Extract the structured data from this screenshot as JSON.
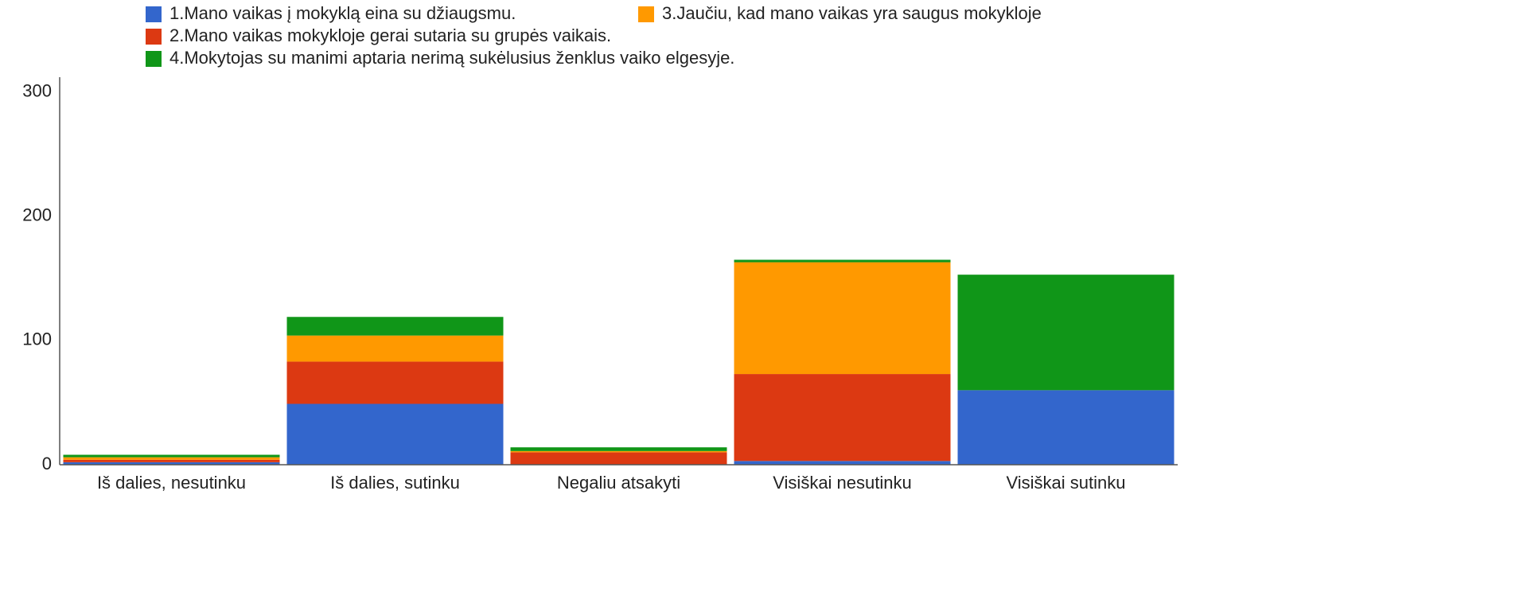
{
  "chart_data": {
    "type": "stacked_bar",
    "categories": [
      "Iš dalies, nesutinku",
      "Iš dalies, sutinku",
      "Negaliu atsakyti",
      "Visiškai nesutinku",
      "Visiškai sutinku"
    ],
    "series": [
      {
        "name": "1.Mano vaikas į mokyklą eina su džiaugsmu.",
        "color": "#3366cc",
        "values": [
          2,
          49,
          0,
          3,
          60
        ]
      },
      {
        "name": "2.Mano vaikas mokykloje gerai sutaria su grupės vaikais.",
        "color": "#dc3912",
        "values": [
          2,
          34,
          10,
          70,
          0
        ]
      },
      {
        "name": "3.Jaučiu, kad mano vaikas yra saugus mokykloje",
        "color": "#ff9900",
        "values": [
          2,
          21,
          1,
          90,
          0
        ]
      },
      {
        "name": "4.Mokytojas su manimi aptaria nerimą sukėlusius ženklus vaiko elgesyje.",
        "color": "#109618",
        "values": [
          2,
          15,
          3,
          2,
          93
        ]
      }
    ],
    "ylim": [
      0,
      312
    ],
    "yticks": [
      0,
      100,
      200,
      300
    ],
    "grid": false,
    "legend": "top"
  }
}
